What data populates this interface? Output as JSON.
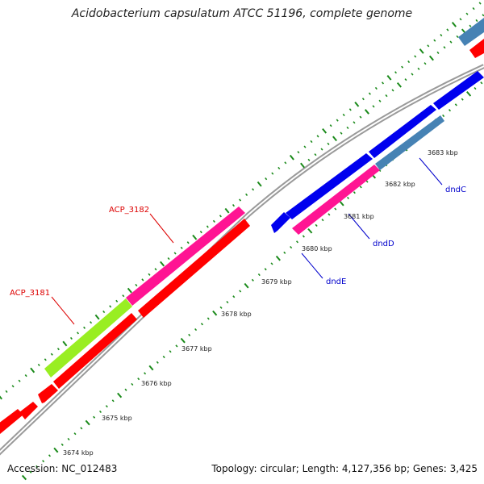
{
  "header": {
    "title": "Acidobacterium capsulatum ATCC 51196, complete genome"
  },
  "footer": {
    "accession": "Accession: NC_012483",
    "summary": "Topology: circular; Length: 4,127,356 bp; Genes: 3,425"
  },
  "scale": {
    "ticks": [
      "3674 kbp",
      "3675 kbp",
      "3676 kbp",
      "3677 kbp",
      "3678 kbp",
      "3679 kbp",
      "3680 kbp",
      "3681 kbp",
      "3682 kbp",
      "3683 kbp"
    ]
  },
  "labels": {
    "acp_3182": "ACP_3182",
    "acp_3181": "ACP_3181",
    "dndc": "dndC",
    "dndd": "dndD",
    "dnde": "dndE"
  },
  "colors": {
    "backbone": "#9a9a9a",
    "tick": "#1a8a1a",
    "red_gene": "#ff0000",
    "magenta_gene": "#ff1493",
    "lime_gene": "#99ee22",
    "blue_gene": "#0000ee",
    "steel_gene": "#4682b4",
    "red_label": "#dd0000",
    "blue_label": "#0000cc"
  }
}
